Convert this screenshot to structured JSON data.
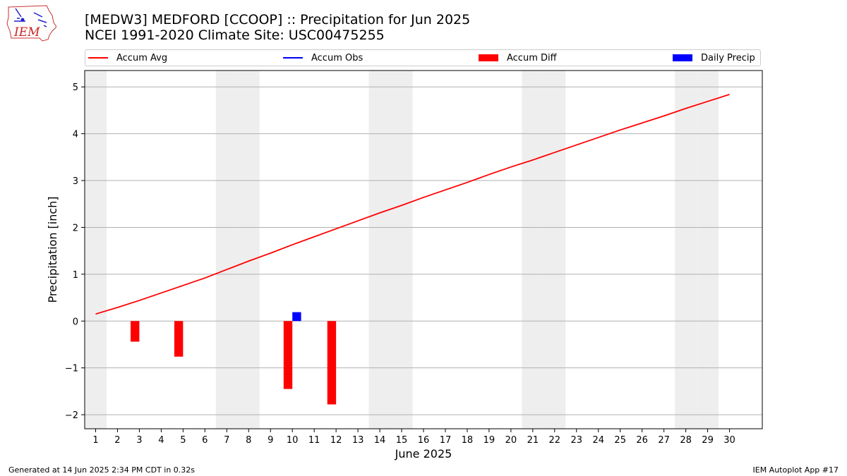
{
  "header": {
    "logo_text": "IEM",
    "title_line1": "[MEDW3] MEDFORD [CCOOP] :: Precipitation for Jun 2025",
    "title_line2": "NCEI 1991-2020 Climate Site: USC00475255"
  },
  "legend": {
    "items": [
      {
        "label": "Accum Avg",
        "type": "line",
        "color": "#ff0000"
      },
      {
        "label": "Accum Obs",
        "type": "line",
        "color": "#0000ff"
      },
      {
        "label": "Accum Diff",
        "type": "box",
        "color": "#ff0000"
      },
      {
        "label": "Daily Precip",
        "type": "box",
        "color": "#0000ff"
      }
    ]
  },
  "footer": {
    "left": "Generated at 14 Jun 2025 2:34 PM CDT in 0.32s",
    "right": "IEM Autoplot App #17"
  },
  "chart_data": {
    "type": "bar",
    "xlabel": "June 2025",
    "ylabel": "Precipitation [inch]",
    "xlim": [
      0.5,
      31.5
    ],
    "ylim": [
      -2.3,
      5.35
    ],
    "x_ticks": [
      1,
      2,
      3,
      4,
      5,
      6,
      7,
      8,
      9,
      10,
      11,
      12,
      13,
      14,
      15,
      16,
      17,
      18,
      19,
      20,
      21,
      22,
      23,
      24,
      25,
      26,
      27,
      28,
      29,
      30
    ],
    "y_ticks": [
      -2,
      -1,
      0,
      1,
      2,
      3,
      4,
      5
    ],
    "y_tick_labels": [
      "−2",
      "−1",
      "0",
      "1",
      "2",
      "3",
      "4",
      "5"
    ],
    "weekend_days": [
      1,
      7,
      8,
      14,
      15,
      21,
      22,
      28,
      29
    ],
    "grid": "horizontal",
    "series": [
      {
        "name": "Accum Avg",
        "type": "line",
        "color": "#ff0000",
        "x": [
          1,
          2,
          3,
          4,
          5,
          6,
          7,
          8,
          9,
          10,
          11,
          12,
          13,
          14,
          15,
          16,
          17,
          18,
          19,
          20,
          21,
          22,
          23,
          24,
          25,
          26,
          27,
          28,
          29,
          30
        ],
        "values": [
          0.15,
          0.29,
          0.44,
          0.6,
          0.76,
          0.92,
          1.1,
          1.28,
          1.45,
          1.63,
          1.8,
          1.97,
          2.14,
          2.31,
          2.47,
          2.64,
          2.8,
          2.96,
          3.13,
          3.29,
          3.44,
          3.6,
          3.76,
          3.92,
          4.08,
          4.23,
          4.38,
          4.54,
          4.69,
          4.84
        ]
      },
      {
        "name": "Accum Diff",
        "type": "bar",
        "color": "#ff0000",
        "x": [
          3,
          5,
          10,
          12
        ],
        "values": [
          -0.44,
          -0.76,
          -1.45,
          -1.78
        ]
      },
      {
        "name": "Daily Precip",
        "type": "bar",
        "color": "#0000ff",
        "x": [
          10
        ],
        "values": [
          0.19
        ]
      }
    ]
  }
}
